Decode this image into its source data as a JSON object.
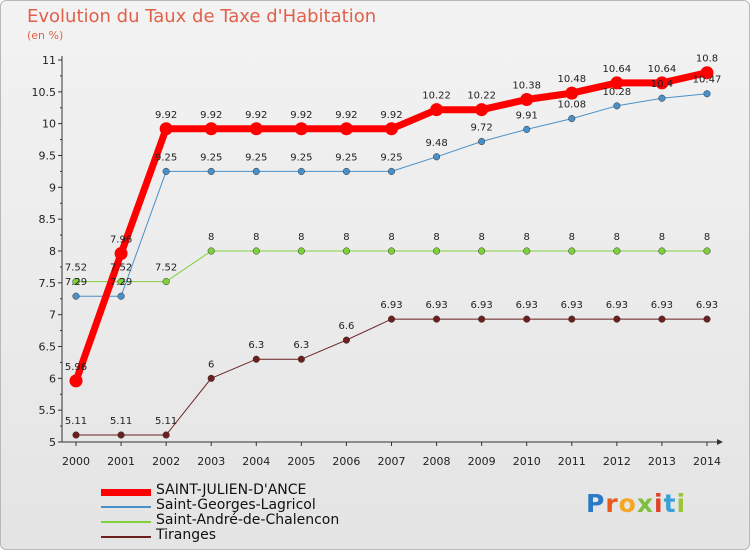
{
  "header": {
    "title": "Evolution du Taux de Taxe d'Habitation",
    "subtitle": "(en %)"
  },
  "brand": {
    "name": "Proxiti"
  },
  "chart_data": {
    "type": "line",
    "title": "Evolution du Taux de Taxe d'Habitation",
    "subtitle": "(en %)",
    "xlabel": "",
    "ylabel": "",
    "ylim": [
      5,
      11
    ],
    "yticks": [
      "5",
      "5.5",
      "6",
      "6.5",
      "7",
      "7.5",
      "8",
      "8.5",
      "9",
      "9.5",
      "10",
      "10.5",
      "11"
    ],
    "x": [
      "2000",
      "2001",
      "2002",
      "2003",
      "2004",
      "2005",
      "2006",
      "2007",
      "2008",
      "2009",
      "2010",
      "2011",
      "2012",
      "2013",
      "2014"
    ],
    "grid": false,
    "legend_position": "bottom-left",
    "series": [
      {
        "name": "SAINT-JULIEN-D'ANCE",
        "color": "#ff0000",
        "values": [
          5.96,
          7.96,
          9.92,
          9.92,
          9.92,
          9.92,
          9.92,
          9.92,
          10.22,
          10.22,
          10.38,
          10.48,
          10.64,
          10.64,
          10.8
        ],
        "labels": [
          "5.96",
          "7.96",
          "9.92",
          "9.92",
          "9.92",
          "9.92",
          "9.92",
          "9.92",
          "10.22",
          "10.22",
          "10.38",
          "10.48",
          "10.64",
          "10.64",
          "10.8"
        ]
      },
      {
        "name": "Saint-Georges-Lagricol",
        "color": "#4a90c8",
        "values": [
          7.29,
          7.29,
          9.25,
          9.25,
          9.25,
          9.25,
          9.25,
          9.25,
          9.48,
          9.72,
          9.91,
          10.08,
          10.28,
          10.4,
          10.47
        ],
        "labels": [
          "7.29",
          "7.29",
          "9.25",
          "9.25",
          "9.25",
          "9.25",
          "9.25",
          "9.25",
          "9.48",
          "9.72",
          "9.91",
          "10.08",
          "10.28",
          "10.4",
          "10.47"
        ]
      },
      {
        "name": "Saint-André-de-Chalencon",
        "color": "#7fd13b",
        "values": [
          7.52,
          7.52,
          7.52,
          8,
          8,
          8,
          8,
          8,
          8,
          8,
          8,
          8,
          8,
          8,
          8
        ],
        "labels": [
          "7.52",
          "7.52",
          "7.52",
          "8",
          "8",
          "8",
          "8",
          "8",
          "8",
          "8",
          "8",
          "8",
          "8",
          "8",
          "8"
        ]
      },
      {
        "name": "Tiranges",
        "color": "#6b1f1f",
        "values": [
          5.11,
          5.11,
          5.11,
          6,
          6.3,
          6.3,
          6.6,
          6.93,
          6.93,
          6.93,
          6.93,
          6.93,
          6.93,
          6.93,
          6.93
        ],
        "labels": [
          "5.11",
          "5.11",
          "5.11",
          "6",
          "6.3",
          "6.3",
          "6.6",
          "6.93",
          "6.93",
          "6.93",
          "6.93",
          "6.93",
          "6.93",
          "6.93",
          "6.93"
        ]
      }
    ]
  }
}
